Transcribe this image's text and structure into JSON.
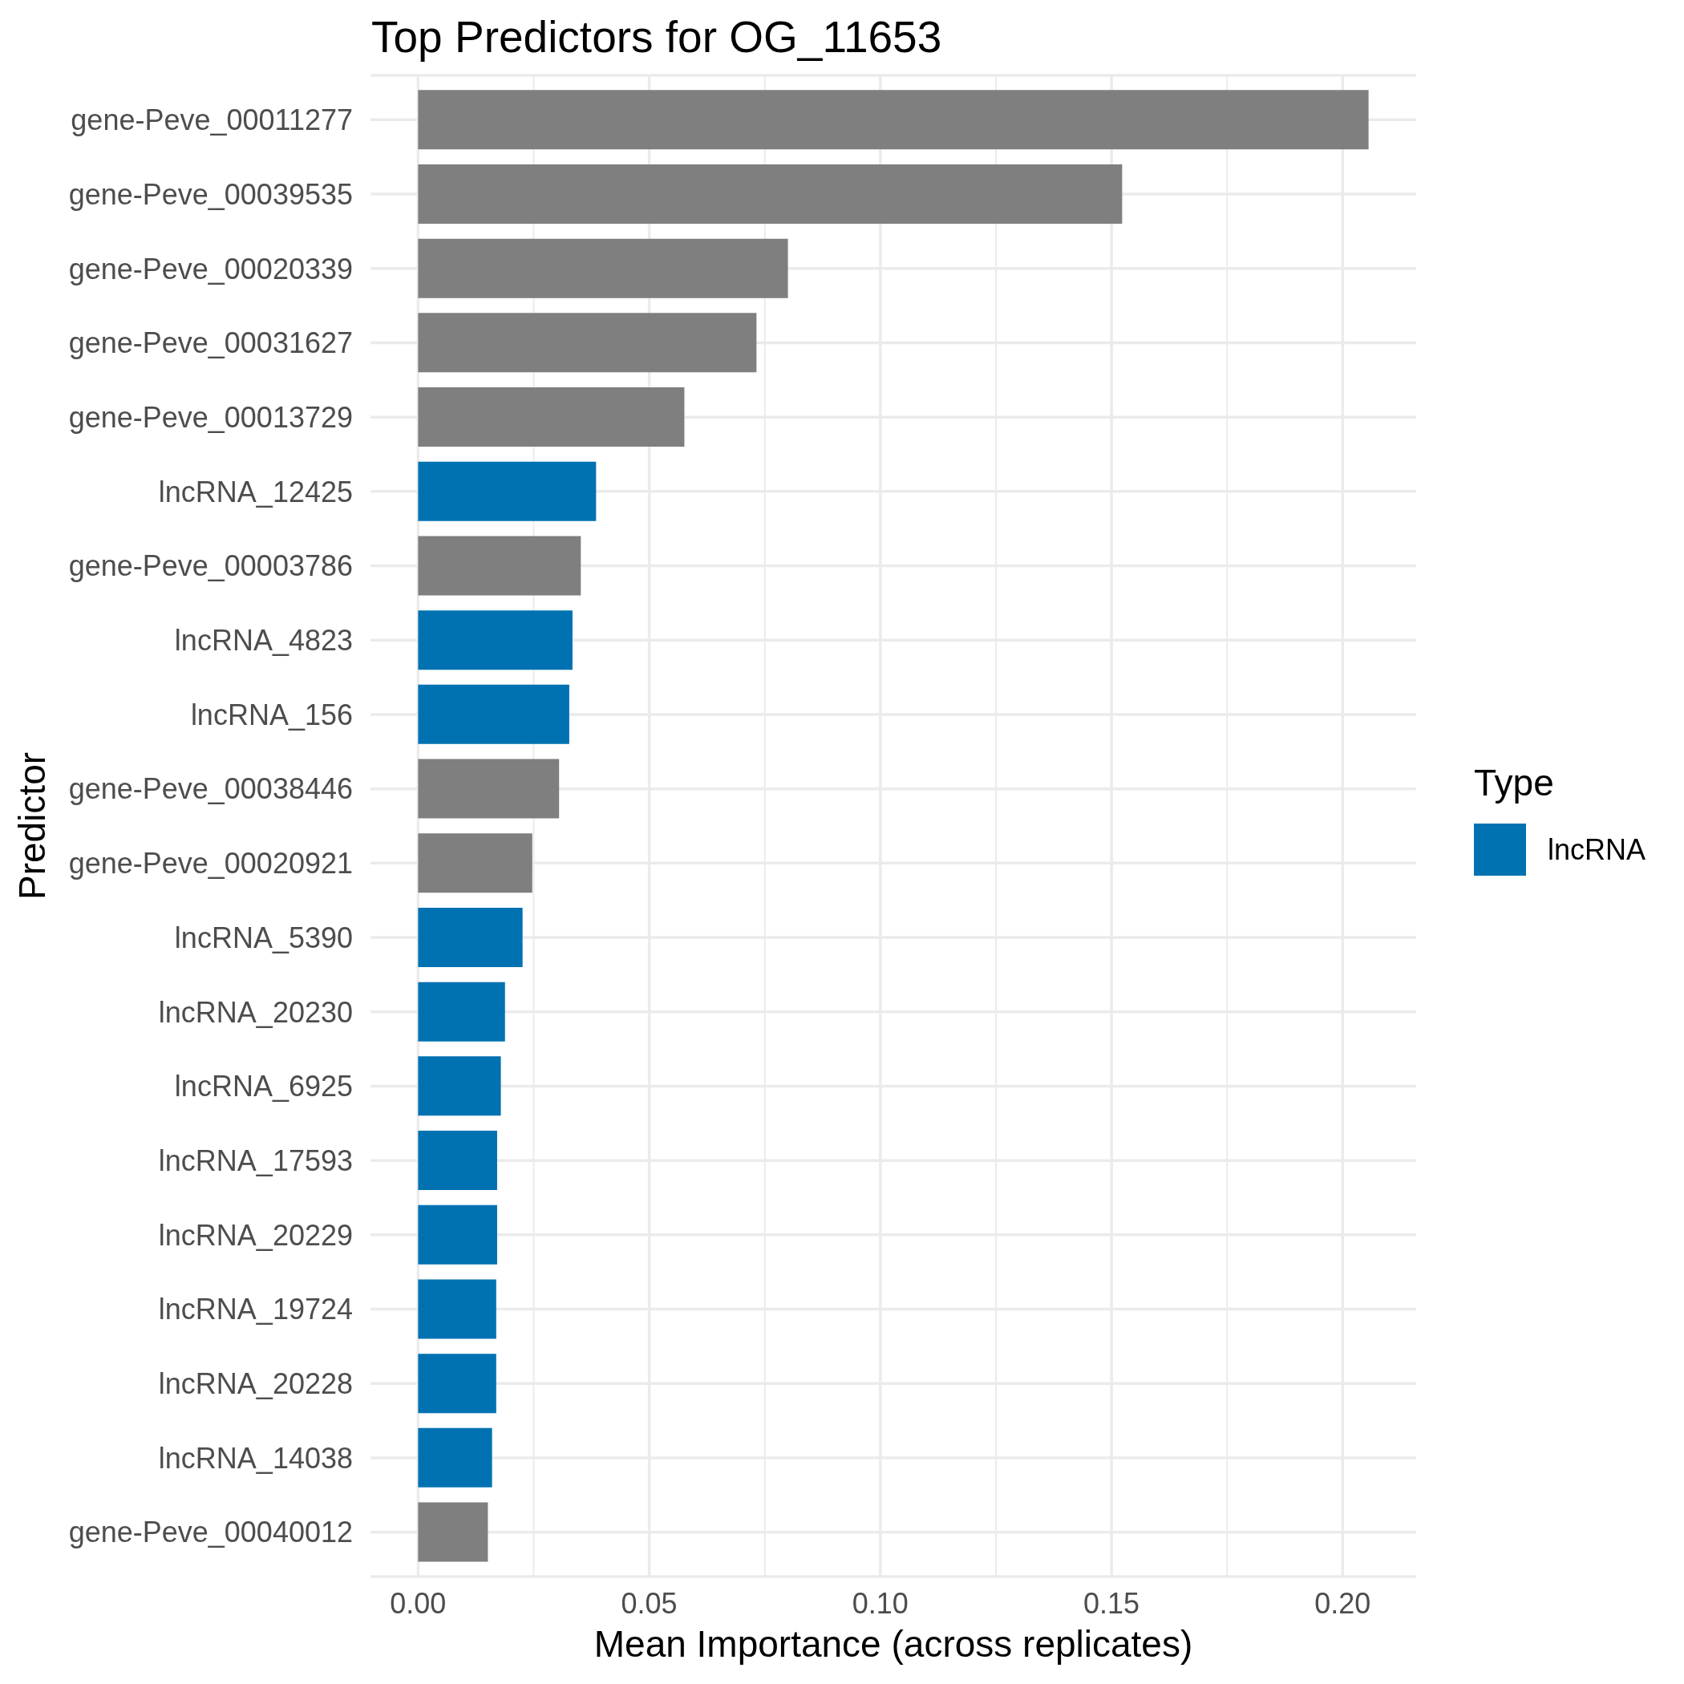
{
  "chart_data": {
    "type": "bar",
    "orientation": "horizontal",
    "title": "Top Predictors for OG_11653",
    "xlabel": "Mean Importance (across replicates)",
    "ylabel": "Predictor",
    "legend_title": "Type",
    "categories": [
      "gene-Peve_00011277",
      "gene-Peve_00039535",
      "gene-Peve_00020339",
      "gene-Peve_00031627",
      "gene-Peve_00013729",
      "lncRNA_12425",
      "gene-Peve_00003786",
      "lncRNA_4823",
      "lncRNA_156",
      "gene-Peve_00038446",
      "gene-Peve_00020921",
      "lncRNA_5390",
      "lncRNA_20230",
      "lncRNA_6925",
      "lncRNA_17593",
      "lncRNA_20229",
      "lncRNA_19724",
      "lncRNA_20228",
      "lncRNA_14038",
      "gene-Peve_00040012"
    ],
    "series": [
      {
        "name": "lncRNA",
        "color": "#0072b2",
        "values": [
          null,
          null,
          null,
          null,
          null,
          0.0385,
          null,
          0.0334,
          0.0327,
          null,
          null,
          0.0226,
          0.0188,
          0.0179,
          0.0171,
          0.0171,
          0.0169,
          0.0169,
          0.016,
          null
        ]
      },
      {
        "color": "#7f7f7f",
        "values": [
          0.2056,
          0.1523,
          0.08,
          0.0732,
          0.0576,
          null,
          0.0352,
          null,
          null,
          0.0305,
          0.0247,
          null,
          null,
          null,
          null,
          null,
          null,
          null,
          null,
          0.0151
        ]
      }
    ],
    "xlim": [
      -0.0103,
      0.2159
    ],
    "xticks": [
      {
        "value": 0,
        "label": "0.00"
      },
      {
        "value": 0.025,
        "label": null
      },
      {
        "value": 0.05,
        "label": "0.05"
      },
      {
        "value": 0.075,
        "label": null
      },
      {
        "value": 0.1,
        "label": "0.10"
      },
      {
        "value": 0.125,
        "label": null
      },
      {
        "value": 0.15,
        "label": "0.15"
      },
      {
        "value": 0.175,
        "label": null
      },
      {
        "value": 0.2,
        "label": "0.20"
      }
    ],
    "grid": true,
    "legend": "right"
  }
}
